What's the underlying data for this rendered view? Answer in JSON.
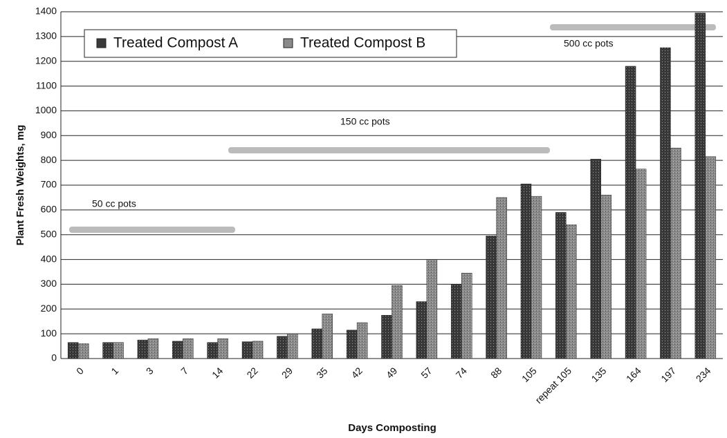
{
  "chart_data": {
    "type": "bar",
    "x_label": "Days Composting",
    "y_label": "Plant Fresh Weights, mg",
    "categories": [
      "0",
      "1",
      "3",
      "7",
      "14",
      "22",
      "29",
      "35",
      "42",
      "49",
      "57",
      "74",
      "88",
      "105",
      "repeat 105",
      "135",
      "164",
      "197",
      "234"
    ],
    "series": [
      {
        "name": "Treated Compost A",
        "color": "#3a3a3a",
        "values": [
          65,
          65,
          75,
          70,
          65,
          68,
          90,
          120,
          115,
          175,
          230,
          300,
          495,
          705,
          590,
          805,
          1180,
          1255,
          1395
        ]
      },
      {
        "name": "Treated Compost B",
        "color": "#8a8a8a",
        "values": [
          60,
          65,
          80,
          80,
          80,
          70,
          100,
          180,
          145,
          295,
          400,
          345,
          650,
          655,
          540,
          660,
          765,
          850,
          815
        ]
      }
    ],
    "annotations": [
      "50 cc pots",
      "150 cc pots",
      "500 cc pots"
    ],
    "ylim": [
      0,
      1400
    ],
    "yticks": [
      0,
      100,
      200,
      300,
      400,
      500,
      600,
      700,
      800,
      900,
      1000,
      1100,
      1200,
      1300,
      1400
    ],
    "grid": true,
    "legend": "top-left"
  }
}
